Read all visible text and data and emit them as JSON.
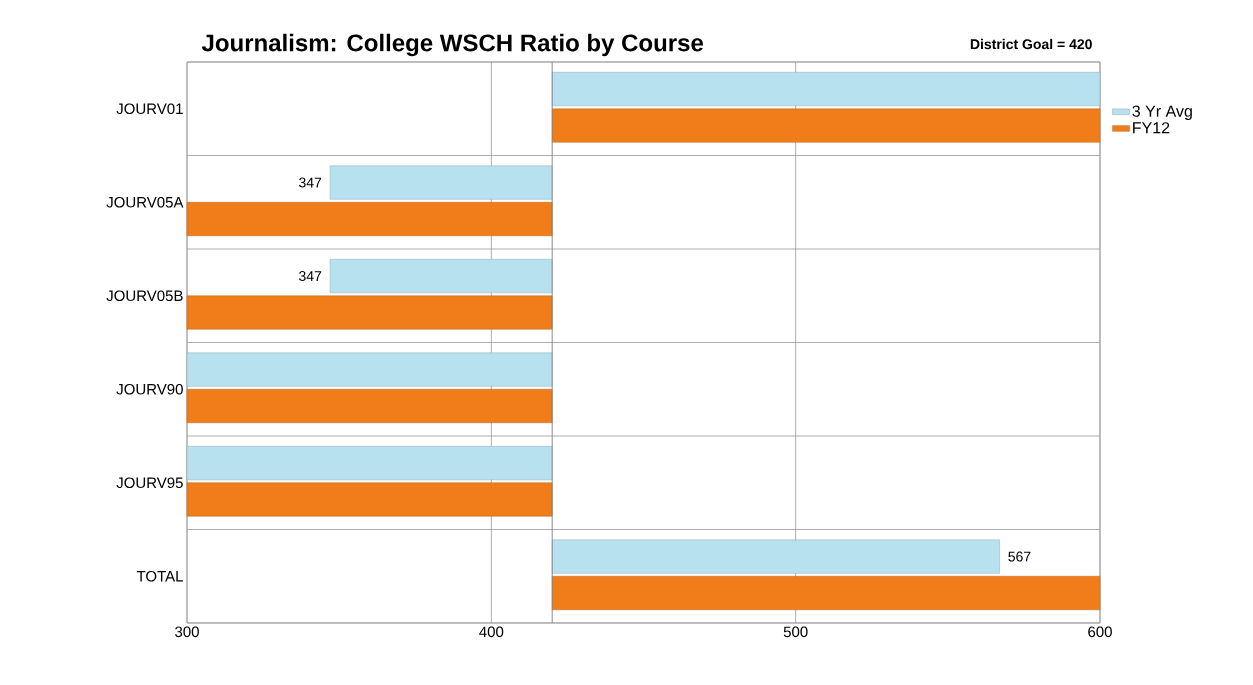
{
  "chart_data": {
    "type": "bar",
    "orientation": "horizontal",
    "title": "Journalism: College WSCH Ratio by Course",
    "annotations": [
      "District Goal = 420"
    ],
    "categories": [
      "JOURV01",
      "JOURV05A",
      "JOURV05B",
      "JOURV90",
      "JOURV95",
      "TOTAL"
    ],
    "series": [
      {
        "name": "3 Yr Avg",
        "color": "#b7e1ee",
        "base": [
          420,
          420,
          420,
          420,
          420,
          420
        ],
        "values": [
          180,
          -73,
          -73,
          -120,
          -120,
          147
        ],
        "value_labels": [
          null,
          "347",
          "347",
          null,
          null,
          "567"
        ]
      },
      {
        "name": "FY12",
        "color": "#f07d1a",
        "base": [
          420,
          420,
          420,
          420,
          420,
          420
        ],
        "values": [
          180,
          -120,
          -120,
          -120,
          -120,
          180
        ]
      }
    ],
    "xlim": [
      300,
      600
    ],
    "xticks": [
      300,
      400,
      500,
      600
    ],
    "ref_lines": [
      {
        "axis": "x",
        "value": 420,
        "color": "#808080"
      }
    ],
    "grid": true,
    "legend": "right"
  }
}
